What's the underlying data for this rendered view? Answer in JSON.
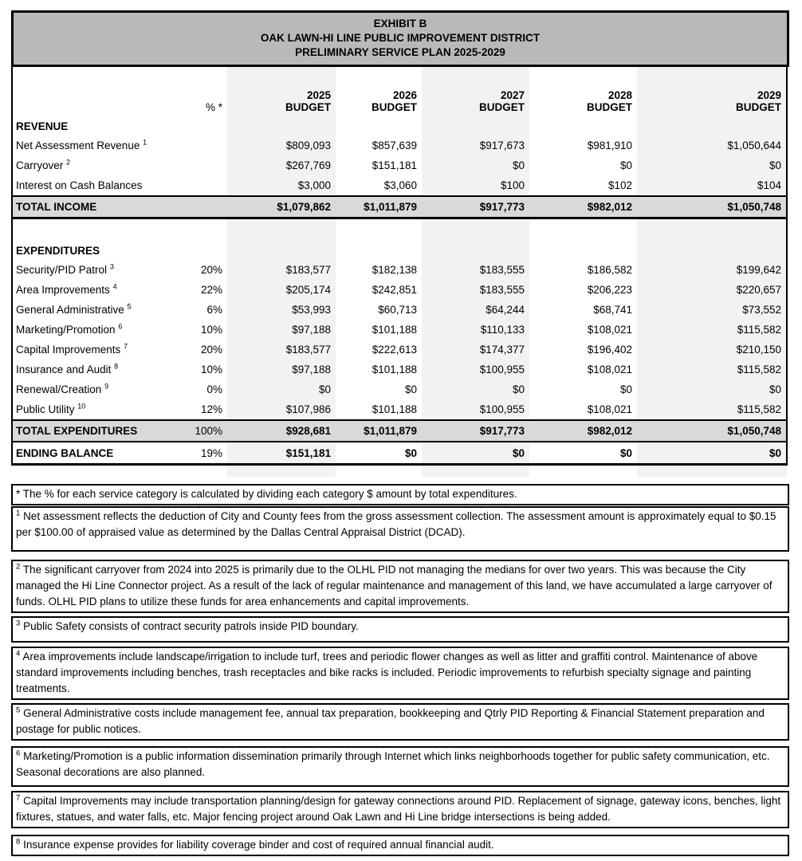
{
  "colors": {
    "title_bg": "#b9b9b9",
    "total_row_bg": "#d9d9d9",
    "column_stripe_bg": "#f2f2f2",
    "border": "#000000"
  },
  "title": {
    "line1": "EXHIBIT B",
    "line2": "OAK LAWN-HI LINE PUBLIC IMPROVEMENT DISTRICT",
    "line3": "PRELIMINARY SERVICE PLAN 2025-2029"
  },
  "columns": {
    "pct_header": "% *",
    "years": [
      "2025",
      "2026",
      "2027",
      "2028",
      "2029"
    ],
    "budget_label": "BUDGET"
  },
  "table": {
    "revenue_header": "REVENUE",
    "revenue_rows": [
      {
        "label": "Net Assessment Revenue",
        "sup": "1",
        "pct": "",
        "values": [
          "$809,093",
          "$857,639",
          "$917,673",
          "$981,910",
          "$1,050,644"
        ]
      },
      {
        "label": "Carryover",
        "sup": "2",
        "pct": "",
        "values": [
          "$267,769",
          "$151,181",
          "$0",
          "$0",
          "$0"
        ]
      },
      {
        "label": "Interest on Cash Balances",
        "sup": "",
        "pct": "",
        "values": [
          "$3,000",
          "$3,060",
          "$100",
          "$102",
          "$104"
        ]
      }
    ],
    "total_income": {
      "label": "TOTAL INCOME",
      "pct": "",
      "values": [
        "$1,079,862",
        "$1,011,879",
        "$917,773",
        "$982,012",
        "$1,050,748"
      ]
    },
    "expenditures_header": "EXPENDITURES",
    "expenditure_rows": [
      {
        "label": "Security/PID Patrol",
        "sup": "3",
        "pct": "20%",
        "values": [
          "$183,577",
          "$182,138",
          "$183,555",
          "$186,582",
          "$199,642"
        ]
      },
      {
        "label": "Area Improvements",
        "sup": "4",
        "pct": "22%",
        "values": [
          "$205,174",
          "$242,851",
          "$183,555",
          "$206,223",
          "$220,657"
        ]
      },
      {
        "label": "General Administrative",
        "sup": "5",
        "pct": "6%",
        "values": [
          "$53,993",
          "$60,713",
          "$64,244",
          "$68,741",
          "$73,552"
        ]
      },
      {
        "label": "Marketing/Promotion",
        "sup": "6",
        "pct": "10%",
        "values": [
          "$97,188",
          "$101,188",
          "$110,133",
          "$108,021",
          "$115,582"
        ]
      },
      {
        "label": "Capital Improvements",
        "sup": "7",
        "pct": "20%",
        "values": [
          "$183,577",
          "$222,613",
          "$174,377",
          "$196,402",
          "$210,150"
        ]
      },
      {
        "label": "Insurance and Audit",
        "sup": "8",
        "pct": "10%",
        "values": [
          "$97,188",
          "$101,188",
          "$100,955",
          "$108,021",
          "$115,582"
        ]
      },
      {
        "label": "Renewal/Creation",
        "sup": "9",
        "pct": "0%",
        "values": [
          "$0",
          "$0",
          "$0",
          "$0",
          "$0"
        ]
      },
      {
        "label": "Public Utility",
        "sup": "10",
        "pct": "12%",
        "values": [
          "$107,986",
          "$101,188",
          "$100,955",
          "$108,021",
          "$115,582"
        ]
      }
    ],
    "total_expenditures": {
      "label": "TOTAL EXPENDITURES",
      "pct": "100%",
      "values": [
        "$928,681",
        "$1,011,879",
        "$917,773",
        "$982,012",
        "$1,050,748"
      ]
    },
    "ending_balance": {
      "label": "ENDING BALANCE",
      "pct": "19%",
      "values": [
        "$151,181",
        "$0",
        "$0",
        "$0",
        "$0"
      ]
    }
  },
  "footnotes": [
    {
      "marker": "*",
      "text": "The % for each service category is calculated by dividing each category $ amount by total expenditures."
    },
    {
      "marker": "1",
      "text": "Net assessment reflects the deduction of City and County fees from the gross assessment collection. The assessment amount is approximately equal to $0.15 per $100.00 of appraised value as determined by the Dallas Central Appraisal District (DCAD)."
    },
    {
      "marker": "2",
      "text": "The significant carryover from 2024 into 2025 is primarily due to the OLHL PID not managing the medians for over two years. This was because the City managed the Hi Line Connector project. As a result of the lack of regular maintenance and management of this land, we have accumulated a large carryover of funds. OLHL PID plans to utilize these funds for area enhancements and capital improvements."
    },
    {
      "marker": "3",
      "text": "Public Safety consists of contract security patrols inside PID boundary."
    },
    {
      "marker": "4",
      "text": "Area improvements include landscape/irrigation to include turf, trees and periodic flower changes as well as litter and graffiti control. Maintenance of above standard improvements including benches, trash receptacles and bike racks is included. Periodic improvements to refurbish specialty signage and painting treatments."
    },
    {
      "marker": "5",
      "text": "General Administrative costs include management fee, annual tax preparation, bookkeeping and Qtrly PID Reporting & Financial Statement preparation and postage for public notices."
    },
    {
      "marker": "6",
      "text": "Marketing/Promotion is a public information dissemination primarily through Internet which links neighborhoods together for public safety communication, etc. Seasonal decorations are also planned."
    },
    {
      "marker": "7",
      "text": "Capital Improvements may include transportation planning/design for gateway connections around PID. Replacement of signage, gateway icons, benches, light fixtures, statues, and water falls, etc. Major fencing project around Oak Lawn and Hi Line bridge intersections is being added."
    },
    {
      "marker": "8",
      "text": "Insurance expense provides for liability coverage binder and cost of required annual financial audit."
    }
  ]
}
